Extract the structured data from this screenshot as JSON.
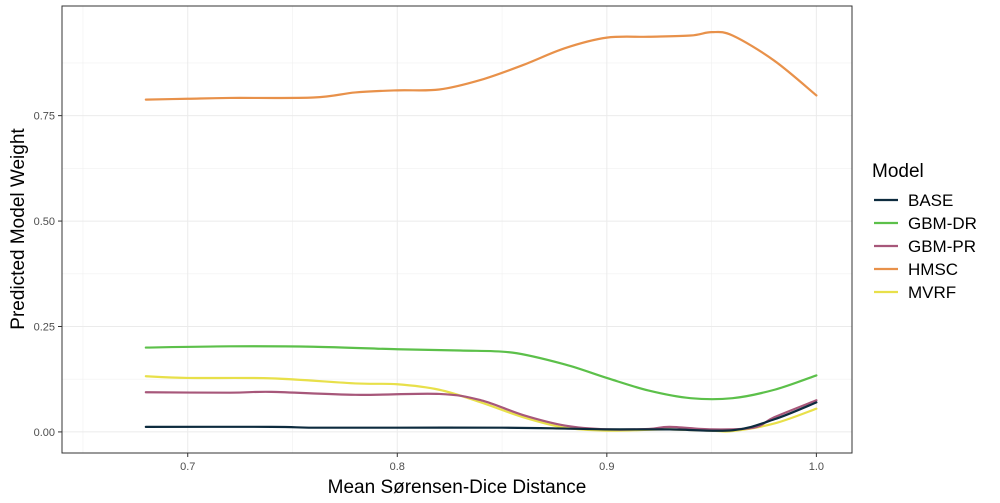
{
  "chart_data": {
    "type": "line",
    "title": "",
    "xlabel": "Mean Sørensen-Dice Distance",
    "ylabel": "Predicted Model Weight",
    "xlim": [
      0.64,
      1.017
    ],
    "ylim": [
      -0.05,
      1.01
    ],
    "x_ticks": [
      0.7,
      0.8,
      0.9,
      1.0
    ],
    "x_tick_labels": [
      "0.7",
      "0.8",
      "0.9",
      "1.0"
    ],
    "y_ticks": [
      0.0,
      0.25,
      0.5,
      0.75
    ],
    "y_tick_labels": [
      "0.00",
      "0.25",
      "0.50",
      "0.75"
    ],
    "grid": true,
    "legend": {
      "title": "Model",
      "position": "right"
    },
    "series": [
      {
        "name": "BASE",
        "color": "#0d2b3e",
        "x": [
          0.68,
          0.74,
          0.76,
          0.8,
          0.85,
          0.88,
          0.9,
          0.93,
          0.96,
          0.98,
          1.0
        ],
        "y": [
          0.012,
          0.012,
          0.01,
          0.01,
          0.01,
          0.008,
          0.006,
          0.006,
          0.004,
          0.03,
          0.07
        ]
      },
      {
        "name": "GBM-DR",
        "color": "#5cc04a",
        "x": [
          0.68,
          0.72,
          0.76,
          0.8,
          0.83,
          0.855,
          0.88,
          0.9,
          0.92,
          0.94,
          0.96,
          0.98,
          1.0
        ],
        "y": [
          0.2,
          0.203,
          0.202,
          0.196,
          0.193,
          0.188,
          0.16,
          0.128,
          0.098,
          0.08,
          0.08,
          0.1,
          0.134
        ]
      },
      {
        "name": "GBM-PR",
        "color": "#a7577a",
        "x": [
          0.68,
          0.72,
          0.74,
          0.78,
          0.82,
          0.84,
          0.86,
          0.88,
          0.9,
          0.92,
          0.93,
          0.95,
          0.97,
          0.98,
          1.0
        ],
        "y": [
          0.094,
          0.093,
          0.095,
          0.088,
          0.09,
          0.075,
          0.04,
          0.015,
          0.006,
          0.007,
          0.012,
          0.006,
          0.01,
          0.035,
          0.075
        ]
      },
      {
        "name": "HMSC",
        "color": "#e8914a",
        "x": [
          0.68,
          0.7,
          0.72,
          0.76,
          0.78,
          0.8,
          0.82,
          0.84,
          0.86,
          0.88,
          0.9,
          0.92,
          0.94,
          0.95,
          0.96,
          0.98,
          1.0
        ],
        "y": [
          0.788,
          0.79,
          0.792,
          0.793,
          0.805,
          0.81,
          0.812,
          0.835,
          0.87,
          0.91,
          0.935,
          0.937,
          0.94,
          0.948,
          0.94,
          0.88,
          0.798
        ]
      },
      {
        "name": "MVRF",
        "color": "#e8e04a",
        "x": [
          0.68,
          0.7,
          0.74,
          0.78,
          0.8,
          0.82,
          0.84,
          0.86,
          0.88,
          0.9,
          0.92,
          0.93,
          0.95,
          0.96,
          0.98,
          1.0
        ],
        "y": [
          0.132,
          0.128,
          0.127,
          0.115,
          0.113,
          0.1,
          0.07,
          0.035,
          0.01,
          0.003,
          0.005,
          0.006,
          0.003,
          0.002,
          0.02,
          0.055
        ]
      }
    ]
  }
}
